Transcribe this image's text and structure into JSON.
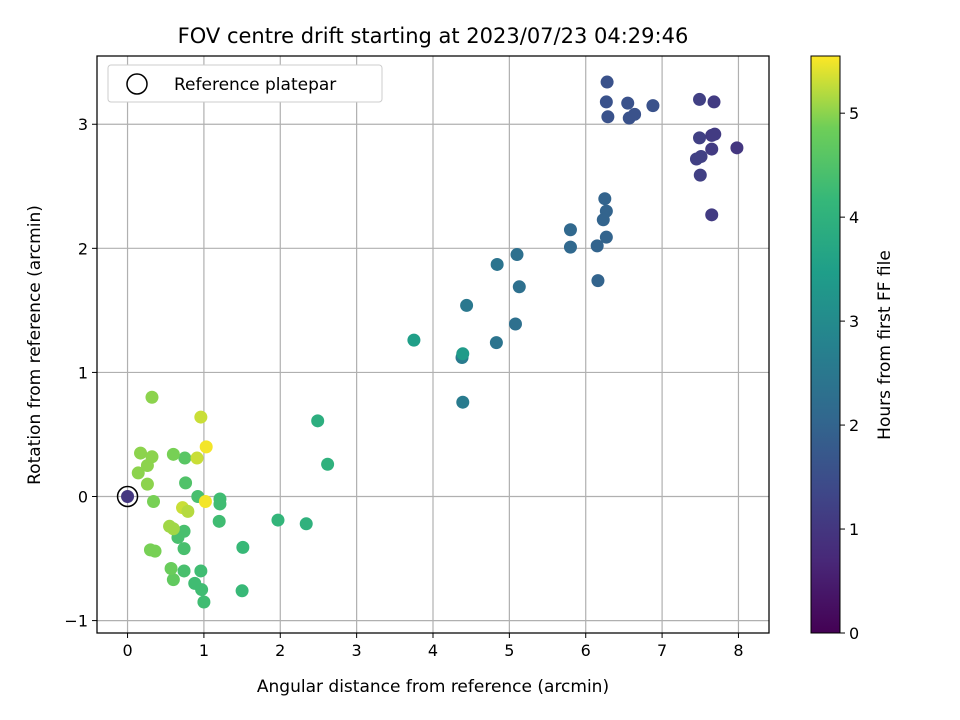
{
  "chart_data": {
    "type": "scatter",
    "title": "FOV centre drift starting at 2023/07/23 04:29:46",
    "xlabel": "Angular distance from reference (arcmin)",
    "ylabel": "Rotation from reference (arcmin)",
    "xlim": [
      -0.4,
      8.4
    ],
    "ylim": [
      -1.1,
      3.55
    ],
    "xticks": [
      0,
      1,
      2,
      3,
      4,
      5,
      6,
      7,
      8
    ],
    "yticks": [
      -1,
      0,
      1,
      2,
      3
    ],
    "grid": true,
    "legend": {
      "position": "top-left",
      "entries": [
        "Reference platepar"
      ]
    },
    "colorbar": {
      "label": "Hours from first FF file",
      "colormap": "viridis",
      "range": [
        0,
        5.55
      ],
      "ticks": [
        0,
        1,
        2,
        3,
        4,
        5
      ]
    },
    "reference_point": {
      "x": 0,
      "y": 0,
      "c": 1.0
    },
    "points": [
      {
        "x": 6.28,
        "y": 3.34,
        "c": 1.6
      },
      {
        "x": 6.27,
        "y": 3.18,
        "c": 1.6
      },
      {
        "x": 6.29,
        "y": 3.06,
        "c": 1.6
      },
      {
        "x": 6.55,
        "y": 3.17,
        "c": 1.6
      },
      {
        "x": 6.57,
        "y": 3.05,
        "c": 1.6
      },
      {
        "x": 6.64,
        "y": 3.08,
        "c": 1.6
      },
      {
        "x": 6.88,
        "y": 3.15,
        "c": 1.6
      },
      {
        "x": 7.49,
        "y": 3.2,
        "c": 1.2
      },
      {
        "x": 7.68,
        "y": 3.18,
        "c": 1.1
      },
      {
        "x": 7.49,
        "y": 2.89,
        "c": 1.2
      },
      {
        "x": 7.65,
        "y": 2.91,
        "c": 1.1
      },
      {
        "x": 7.69,
        "y": 2.92,
        "c": 1.1
      },
      {
        "x": 7.65,
        "y": 2.8,
        "c": 1.1
      },
      {
        "x": 7.98,
        "y": 2.81,
        "c": 1.0
      },
      {
        "x": 7.45,
        "y": 2.72,
        "c": 1.2
      },
      {
        "x": 7.51,
        "y": 2.74,
        "c": 1.2
      },
      {
        "x": 7.5,
        "y": 2.59,
        "c": 1.2
      },
      {
        "x": 7.65,
        "y": 2.27,
        "c": 1.1
      },
      {
        "x": 6.25,
        "y": 2.4,
        "c": 2.0
      },
      {
        "x": 6.27,
        "y": 2.3,
        "c": 2.0
      },
      {
        "x": 6.23,
        "y": 2.23,
        "c": 2.0
      },
      {
        "x": 6.27,
        "y": 2.09,
        "c": 2.0
      },
      {
        "x": 5.8,
        "y": 2.15,
        "c": 2.1
      },
      {
        "x": 5.8,
        "y": 2.01,
        "c": 2.1
      },
      {
        "x": 6.15,
        "y": 2.02,
        "c": 2.0
      },
      {
        "x": 6.16,
        "y": 1.74,
        "c": 2.0
      },
      {
        "x": 4.84,
        "y": 1.87,
        "c": 2.4
      },
      {
        "x": 5.1,
        "y": 1.95,
        "c": 2.3
      },
      {
        "x": 5.13,
        "y": 1.69,
        "c": 2.3
      },
      {
        "x": 4.44,
        "y": 1.54,
        "c": 2.5
      },
      {
        "x": 5.08,
        "y": 1.39,
        "c": 2.3
      },
      {
        "x": 4.83,
        "y": 1.24,
        "c": 2.4
      },
      {
        "x": 4.38,
        "y": 1.12,
        "c": 2.6
      },
      {
        "x": 4.39,
        "y": 1.15,
        "c": 3.4
      },
      {
        "x": 3.75,
        "y": 1.26,
        "c": 3.5
      },
      {
        "x": 4.39,
        "y": 0.76,
        "c": 2.6
      },
      {
        "x": 2.49,
        "y": 0.61,
        "c": 3.9
      },
      {
        "x": 2.62,
        "y": 0.26,
        "c": 4.0
      },
      {
        "x": 1.97,
        "y": -0.19,
        "c": 4.1
      },
      {
        "x": 2.34,
        "y": -0.22,
        "c": 4.0
      },
      {
        "x": 1.51,
        "y": -0.41,
        "c": 4.2
      },
      {
        "x": 1.5,
        "y": -0.76,
        "c": 4.2
      },
      {
        "x": 1.21,
        "y": -0.02,
        "c": 4.3
      },
      {
        "x": 1.21,
        "y": -0.06,
        "c": 4.3
      },
      {
        "x": 1.2,
        "y": -0.2,
        "c": 4.3
      },
      {
        "x": 0.92,
        "y": 0.0,
        "c": 4.4
      },
      {
        "x": 0.76,
        "y": 0.11,
        "c": 4.5
      },
      {
        "x": 0.75,
        "y": 0.31,
        "c": 4.6
      },
      {
        "x": 0.74,
        "y": -0.28,
        "c": 4.4
      },
      {
        "x": 0.66,
        "y": -0.33,
        "c": 4.4
      },
      {
        "x": 0.74,
        "y": -0.42,
        "c": 4.4
      },
      {
        "x": 0.74,
        "y": -0.6,
        "c": 4.4
      },
      {
        "x": 0.96,
        "y": -0.6,
        "c": 4.3
      },
      {
        "x": 0.88,
        "y": -0.7,
        "c": 4.3
      },
      {
        "x": 0.97,
        "y": -0.75,
        "c": 4.3
      },
      {
        "x": 1.0,
        "y": -0.85,
        "c": 4.3
      },
      {
        "x": 0.6,
        "y": -0.67,
        "c": 4.7
      },
      {
        "x": 0.57,
        "y": -0.58,
        "c": 4.8
      },
      {
        "x": 0.55,
        "y": -0.24,
        "c": 5.1
      },
      {
        "x": 0.6,
        "y": -0.26,
        "c": 5.1
      },
      {
        "x": 0.72,
        "y": -0.09,
        "c": 5.3
      },
      {
        "x": 0.79,
        "y": -0.12,
        "c": 5.2
      },
      {
        "x": 1.02,
        "y": -0.04,
        "c": 5.5
      },
      {
        "x": 0.3,
        "y": -0.43,
        "c": 4.9
      },
      {
        "x": 0.36,
        "y": -0.44,
        "c": 4.9
      },
      {
        "x": 0.34,
        "y": -0.04,
        "c": 4.9
      },
      {
        "x": 0.26,
        "y": 0.1,
        "c": 5.0
      },
      {
        "x": 0.14,
        "y": 0.19,
        "c": 5.0
      },
      {
        "x": 0.26,
        "y": 0.25,
        "c": 5.0
      },
      {
        "x": 0.17,
        "y": 0.35,
        "c": 5.0
      },
      {
        "x": 0.32,
        "y": 0.32,
        "c": 5.0
      },
      {
        "x": 0.6,
        "y": 0.34,
        "c": 4.9
      },
      {
        "x": 0.91,
        "y": 0.31,
        "c": 5.3
      },
      {
        "x": 1.03,
        "y": 0.4,
        "c": 5.5
      },
      {
        "x": 0.96,
        "y": 0.64,
        "c": 5.3
      },
      {
        "x": 0.32,
        "y": 0.8,
        "c": 5.0
      }
    ]
  }
}
